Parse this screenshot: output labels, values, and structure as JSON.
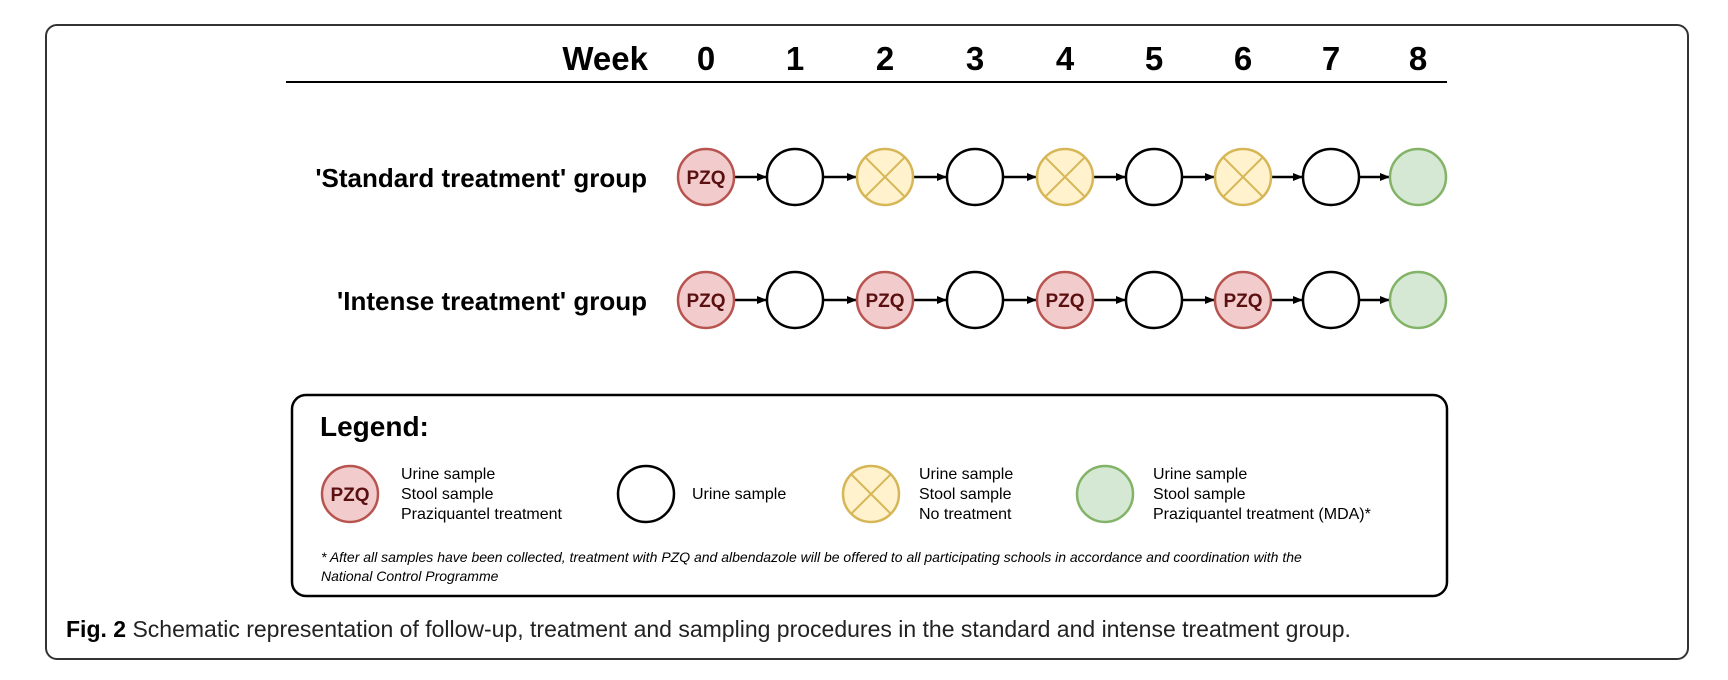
{
  "header": {
    "week_label": "Week",
    "weeks": [
      "0",
      "1",
      "2",
      "3",
      "4",
      "5",
      "6",
      "7",
      "8"
    ]
  },
  "groups": [
    {
      "label": "'Standard treatment' group",
      "nodes": [
        "pzq",
        "urine",
        "no-treatment",
        "urine",
        "no-treatment",
        "urine",
        "no-treatment",
        "urine",
        "mda"
      ]
    },
    {
      "label": "'Intense treatment' group",
      "nodes": [
        "pzq",
        "urine",
        "pzq",
        "urine",
        "pzq",
        "urine",
        "pzq",
        "urine",
        "mda"
      ]
    }
  ],
  "node_text": {
    "pzq": "PZQ"
  },
  "legend": {
    "title": "Legend:",
    "items": [
      {
        "type": "pzq",
        "lines": [
          "Urine sample",
          "Stool sample",
          "Praziquantel treatment"
        ]
      },
      {
        "type": "urine",
        "lines": [
          "Urine sample"
        ]
      },
      {
        "type": "no-treatment",
        "lines": [
          "Urine sample",
          "Stool sample",
          "No treatment"
        ]
      },
      {
        "type": "mda",
        "lines": [
          "Urine sample",
          "Stool sample",
          "Praziquantel treatment (MDA)*"
        ]
      }
    ],
    "footnote": [
      "* After all samples have been collected, treatment with PZQ and albendazole will be offered to all participating schools in accordance and coordination with the",
      "National Control Programme"
    ]
  },
  "caption": {
    "label": "Fig. 2",
    "text": " Schematic representation of follow-up, treatment and sampling procedures in the standard and intense treatment group."
  },
  "colors": {
    "pzq_fill": "#f2cccc",
    "pzq_stroke": "#b85450",
    "notx_fill": "#fff2cc",
    "notx_stroke": "#d6b656",
    "mda_fill": "#d5e8d4",
    "mda_stroke": "#82b366",
    "urine_fill": "#ffffff",
    "urine_stroke": "#000000"
  }
}
